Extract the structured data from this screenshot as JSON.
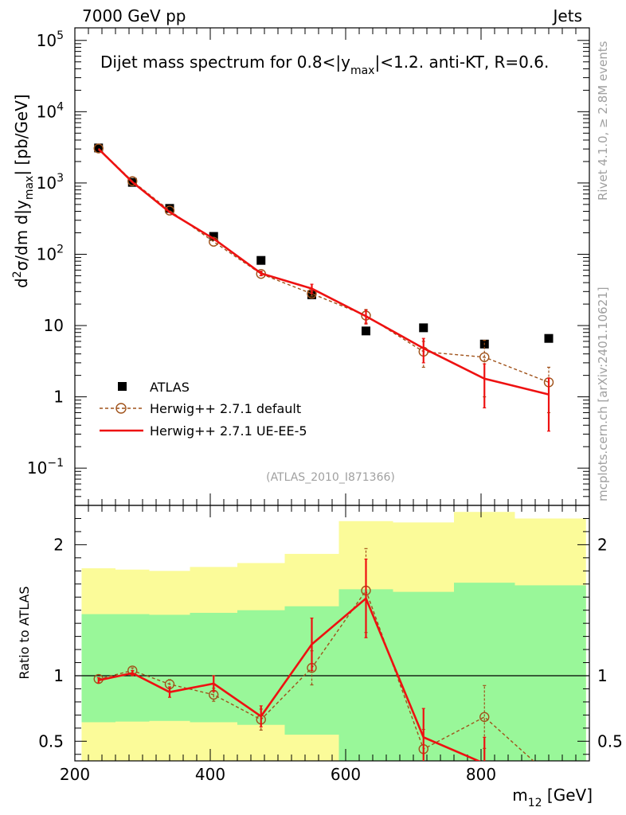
{
  "header": {
    "left": "7000 GeV pp",
    "right": "Jets"
  },
  "side_labels": {
    "rivet": "Rivet 4.1.0, ≥ 2.8M events",
    "mcplots": "mcplots.cern.ch [arXiv:2401.10621]"
  },
  "colors": {
    "atlas": "#000000",
    "default": "#a0521a",
    "ueee5": "#ee1111",
    "band_inner": "#99f799",
    "band_outer": "#fbfb99",
    "watermark": "#a0a0a0"
  },
  "chart_data": [
    {
      "type": "scatter",
      "panel": "main",
      "title": "Dijet mass spectrum for 0.8<|y_max|<1.2.  anti-KT, R=0.6.",
      "title_parts": {
        "pre": "Dijet mass spectrum for 0.8<|y",
        "sub": "max",
        "post": "|<1.2.  anti-KT, R=0.6."
      },
      "ylabel": "d²σ/dm d|y_max| [pb/GeV]",
      "ylabel_parts": {
        "pre": "d",
        "sup": "2",
        "mid": "σ/dm d|y",
        "sub": "max",
        "post": "| [pb/GeV]"
      },
      "yscale": "log",
      "ylim": [
        0.03,
        150000
      ],
      "xlim": [
        200,
        960
      ],
      "y_ticks": [
        {
          "value": 0.1,
          "base": "10",
          "exp": "−1"
        },
        {
          "value": 1,
          "label": "1"
        },
        {
          "value": 10,
          "label": "10"
        },
        {
          "value": 100,
          "base": "10",
          "exp": "2"
        },
        {
          "value": 1000,
          "base": "10",
          "exp": "3"
        },
        {
          "value": 10000,
          "base": "10",
          "exp": "4"
        },
        {
          "value": 100000,
          "base": "10",
          "exp": "5"
        }
      ],
      "watermark": "(ATLAS_2010_I871366)",
      "legend": {
        "position": "lower-left",
        "entries": [
          "ATLAS",
          "Herwig++ 2.7.1 default",
          "Herwig++ 2.7.1 UE-EE-5"
        ]
      },
      "x": [
        235,
        285,
        340,
        405,
        475,
        550,
        630,
        715,
        805,
        900
      ],
      "series": [
        {
          "name": "ATLAS",
          "style": "square-markers",
          "values": [
            3100,
            1020,
            440,
            178,
            82,
            27,
            8.4,
            9.3,
            5.5,
            6.6
          ]
        },
        {
          "name": "Herwig++ 2.7.1 default",
          "style": "dashed-circles",
          "values": [
            3050,
            1060,
            410,
            150,
            53,
            28,
            13.8,
            4.3,
            3.6,
            1.6
          ],
          "errors": [
            0,
            0,
            0,
            0,
            3,
            2,
            3,
            1.7,
            2.6,
            1.0
          ]
        },
        {
          "name": "Herwig++ 2.7.1 UE-EE-5",
          "style": "solid-line",
          "values": [
            3000,
            1030,
            390,
            165,
            54,
            33,
            13.5,
            4.8,
            1.8,
            1.08
          ],
          "errors": [
            0,
            0,
            0,
            0,
            4,
            5,
            3,
            1.8,
            1.1,
            0.75
          ]
        }
      ]
    },
    {
      "type": "line",
      "panel": "ratio",
      "ylabel": "Ratio to ATLAS",
      "xlabel": "m_12 [GeV]",
      "xlabel_parts": {
        "pre": "m",
        "sub": "12",
        "post": " [GeV]"
      },
      "xlim": [
        200,
        960
      ],
      "ylim": [
        0.35,
        2.3
      ],
      "x_ticks": [
        200,
        400,
        600,
        800
      ],
      "y_ticks": [
        0.5,
        1,
        2
      ],
      "reference_line": 1,
      "bins": [
        {
          "lo": 210,
          "hi": 260,
          "inner": [
            0.645,
            1.47
          ],
          "outer": [
            0.35,
            1.82
          ]
        },
        {
          "lo": 260,
          "hi": 310,
          "inner": [
            0.65,
            1.47
          ],
          "outer": [
            0.35,
            1.81
          ]
        },
        {
          "lo": 310,
          "hi": 370,
          "inner": [
            0.655,
            1.465
          ],
          "outer": [
            0.35,
            1.8
          ]
        },
        {
          "lo": 370,
          "hi": 440,
          "inner": [
            0.645,
            1.48
          ],
          "outer": [
            0.35,
            1.83
          ]
        },
        {
          "lo": 440,
          "hi": 510,
          "inner": [
            0.625,
            1.5
          ],
          "outer": [
            0.35,
            1.86
          ]
        },
        {
          "lo": 510,
          "hi": 590,
          "inner": [
            0.55,
            1.53
          ],
          "outer": [
            0.35,
            1.93
          ]
        },
        {
          "lo": 590,
          "hi": 670,
          "inner": [
            0.35,
            1.66
          ],
          "outer": [
            0.35,
            2.18
          ]
        },
        {
          "lo": 670,
          "hi": 760,
          "inner": [
            0.35,
            1.64
          ],
          "outer": [
            0.37,
            2.17
          ]
        },
        {
          "lo": 760,
          "hi": 850,
          "inner": [
            0.35,
            1.71
          ],
          "outer": [
            0.35,
            2.25
          ]
        },
        {
          "lo": 850,
          "hi": 955,
          "inner": [
            0.35,
            1.69
          ],
          "outer": [
            0.35,
            2.2
          ]
        }
      ],
      "x": [
        235,
        285,
        340,
        405,
        475,
        550,
        630,
        715,
        805,
        900
      ],
      "series": [
        {
          "name": "Herwig++ 2.7.1 default",
          "style": "dashed-circles",
          "values": [
            0.975,
            1.04,
            0.935,
            0.855,
            0.665,
            1.06,
            1.65,
            0.44,
            0.685,
            0.245
          ],
          "errors": [
            0,
            0.02,
            0.035,
            0.05,
            0.08,
            0.13,
            0.32,
            0.15,
            0.24,
            0.1
          ]
        },
        {
          "name": "Herwig++ 2.7.1 UE-EE-5",
          "style": "solid-line",
          "values": [
            0.965,
            1.02,
            0.875,
            0.94,
            0.69,
            1.24,
            1.59,
            0.53,
            0.33,
            0.17
          ],
          "errors": [
            0.02,
            0.02,
            0.04,
            0.06,
            0.08,
            0.2,
            0.3,
            0.22,
            0.2,
            0.12
          ]
        }
      ]
    }
  ]
}
